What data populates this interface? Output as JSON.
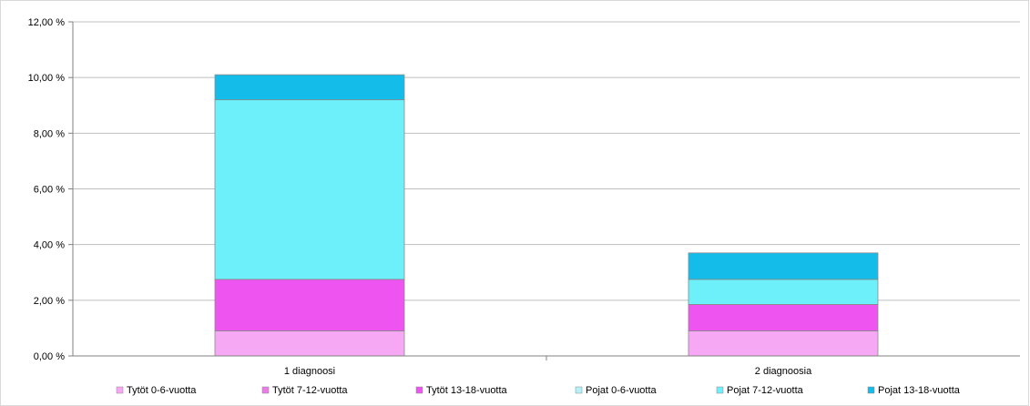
{
  "chart_data": {
    "type": "bar",
    "stacked": true,
    "categories": [
      "1 diagnoosi",
      "2 diagnoosia"
    ],
    "series": [
      {
        "name": "Tytöt 0-6-vuotta",
        "values": [
          0.9,
          0.9
        ],
        "color": "#f7a8f4"
      },
      {
        "name": "Tytöt 7-12-vuotta",
        "values": [
          0.0,
          0.0
        ],
        "color": "#e87ee5"
      },
      {
        "name": "Tytöt 13-18-vuotta",
        "values": [
          1.85,
          0.95
        ],
        "color": "#ee55f0"
      },
      {
        "name": "Pojat 0-6-vuotta",
        "values": [
          0.0,
          0.0
        ],
        "color": "#b5f1f7"
      },
      {
        "name": "Pojat 7-12-vuotta",
        "values": [
          6.45,
          0.9
        ],
        "color": "#6ef0fb"
      },
      {
        "name": "Pojat 13-18-vuotta",
        "values": [
          0.9,
          0.95
        ],
        "color": "#14bde9"
      }
    ],
    "yticks": [
      "0,00 %",
      "2,00 %",
      "4,00 %",
      "6,00 %",
      "8,00 %",
      "10,00 %",
      "12,00 %"
    ],
    "ylim": [
      0,
      12
    ],
    "grid": true,
    "legend_position": "bottom"
  }
}
